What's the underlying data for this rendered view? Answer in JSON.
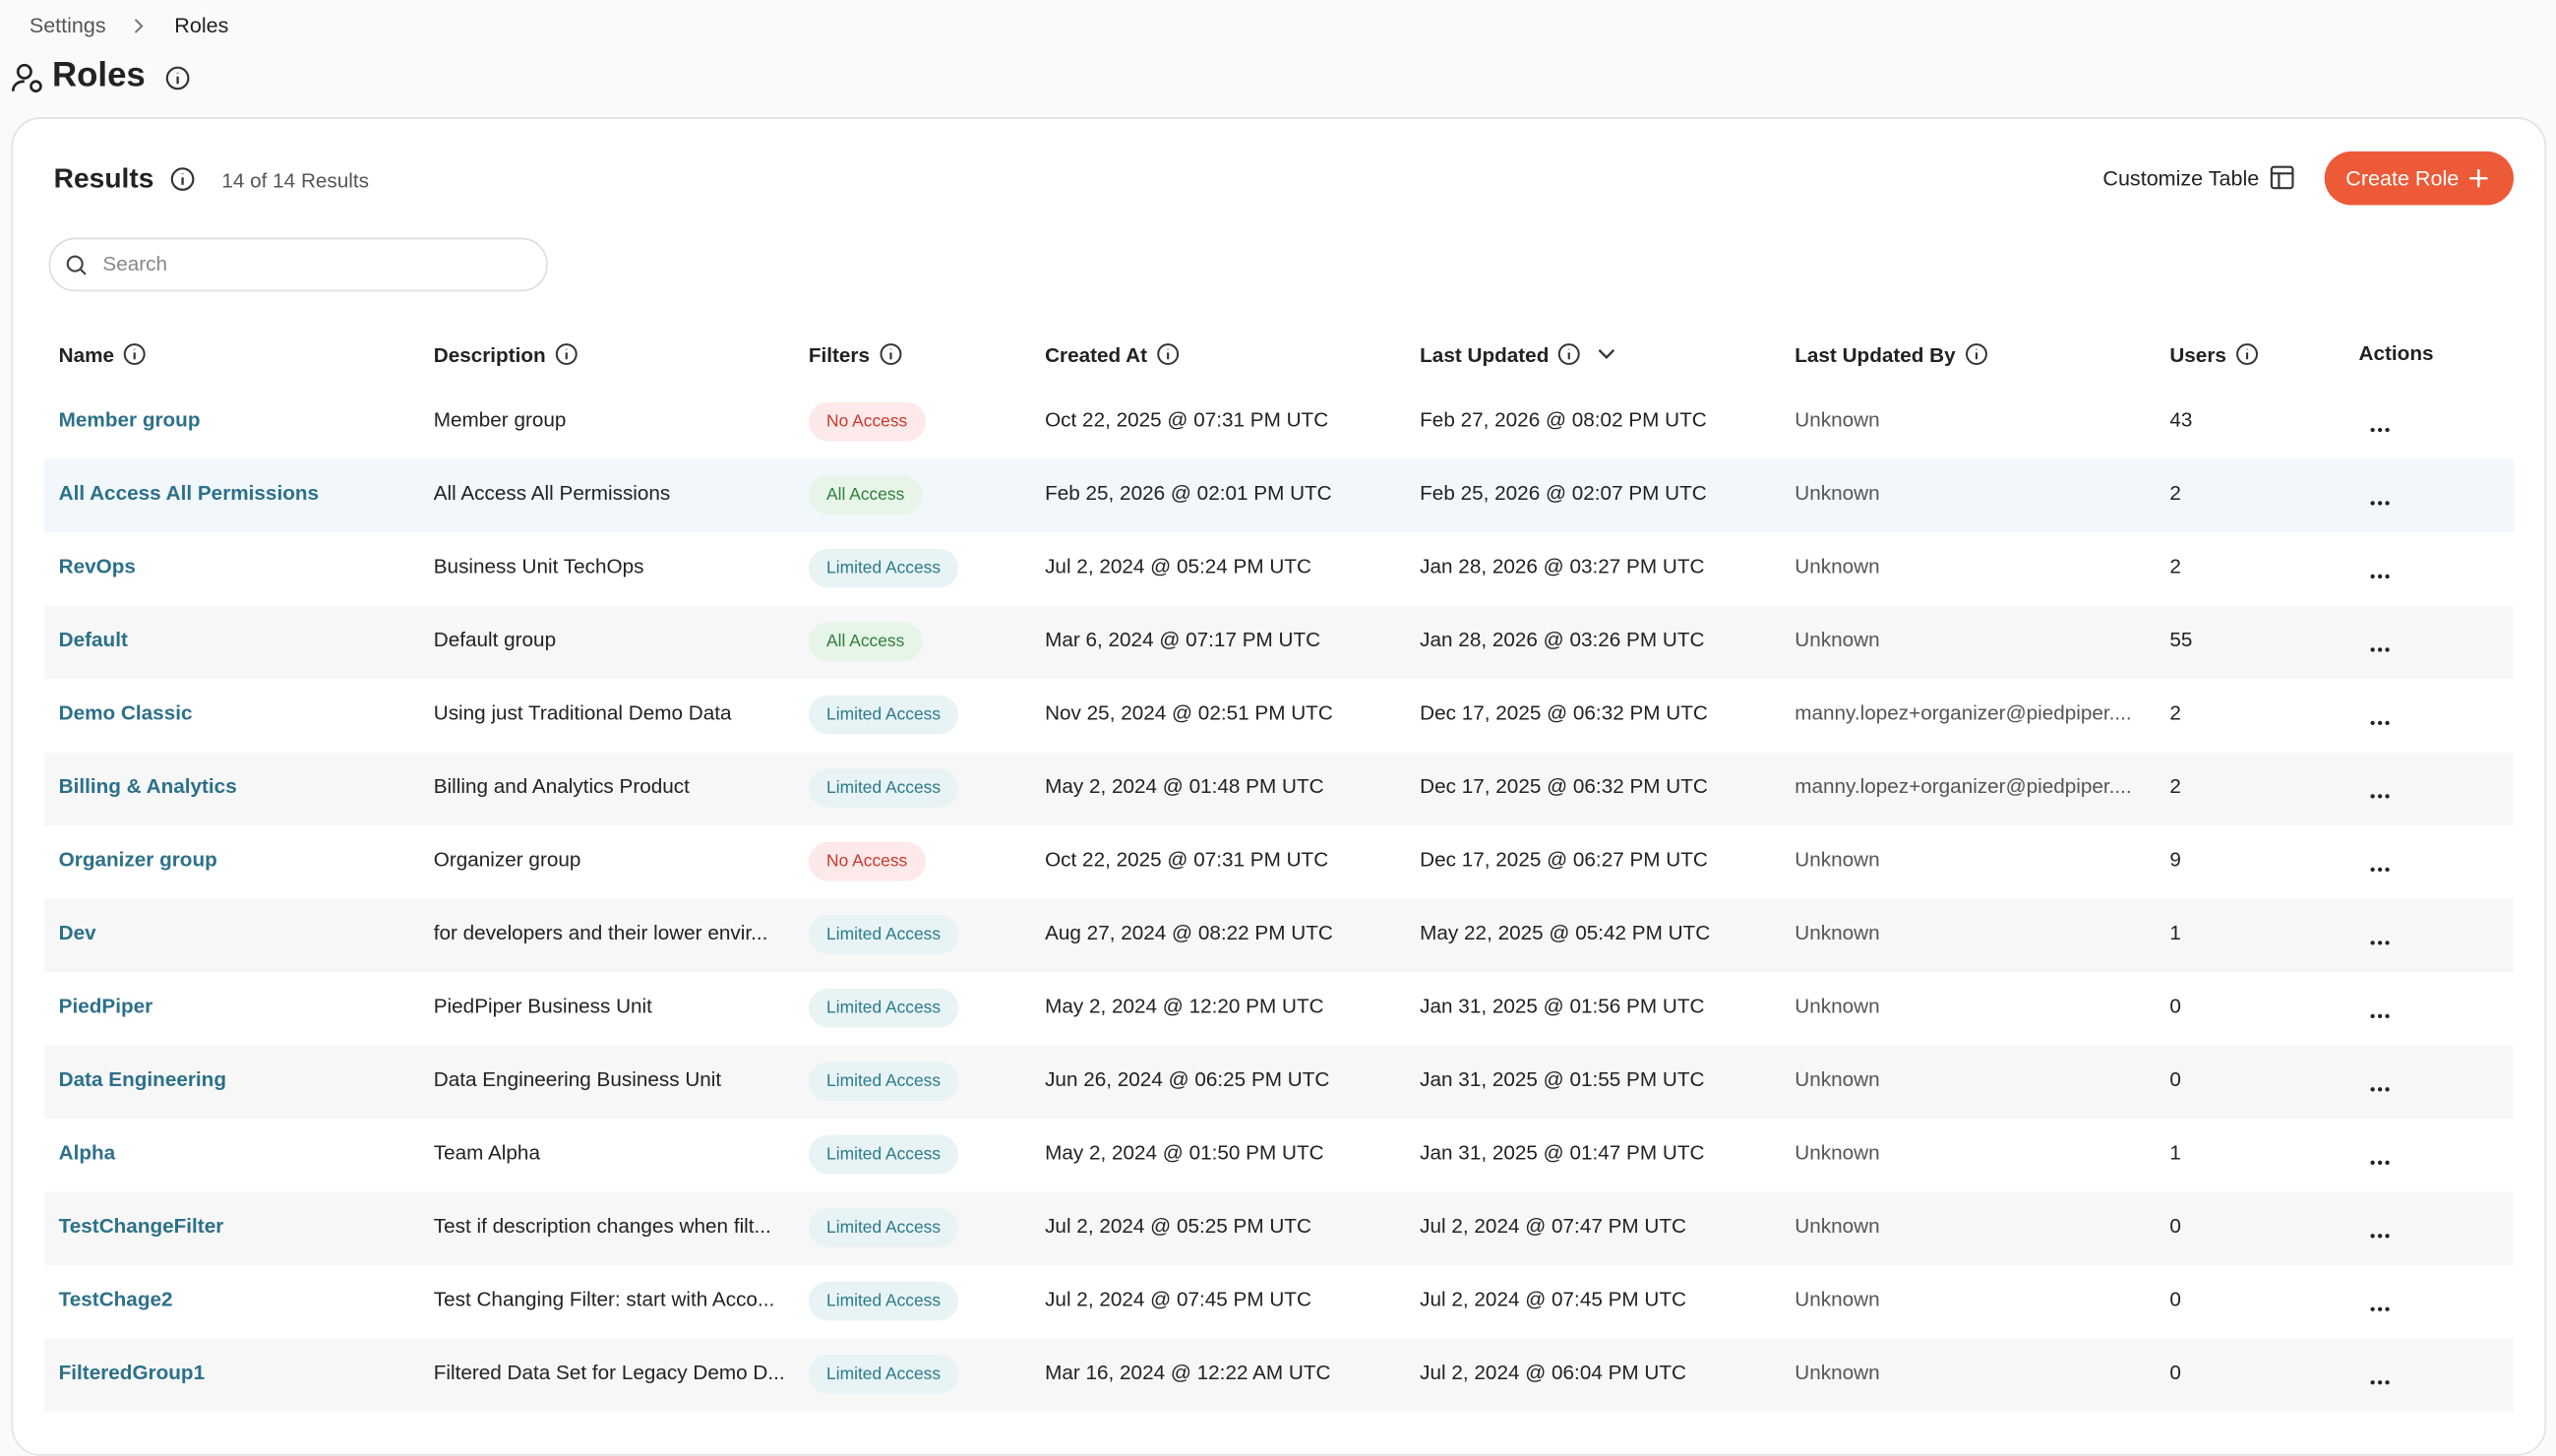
{
  "breadcrumb": [
    "Settings",
    "Roles"
  ],
  "page_title": "Roles",
  "results": {
    "title": "Results",
    "count": "14 of 14 Results",
    "customize": "Customize Table",
    "create": "Create Role",
    "search_placeholder": "Search"
  },
  "table": {
    "columns": [
      {
        "label": "Name",
        "info": true
      },
      {
        "label": "Description",
        "info": true
      },
      {
        "label": "Filters",
        "info": true
      },
      {
        "label": "Created At",
        "info": true
      },
      {
        "label": "Last Updated",
        "info": true,
        "sort": "desc"
      },
      {
        "label": "Last Updated By",
        "info": true
      },
      {
        "label": "Users",
        "info": true
      },
      {
        "label": "Actions",
        "info": false
      }
    ],
    "rows": [
      [
        "Member group",
        "Member group",
        "No Access",
        "Oct 22, 2025 @ 07:31 PM UTC",
        "Feb 27, 2026 @ 08:02 PM UTC",
        "Unknown",
        43
      ],
      [
        "All Access All Permissions",
        "All Access All Permissions",
        "All Access",
        "Feb 25, 2026 @ 02:01 PM UTC",
        "Feb 25, 2026 @ 02:07 PM UTC",
        "Unknown",
        2
      ],
      [
        "RevOps",
        "Business Unit TechOps",
        "Limited Access",
        "Jul 2, 2024 @ 05:24 PM UTC",
        "Jan 28, 2026 @ 03:27 PM UTC",
        "Unknown",
        2
      ],
      [
        "Default",
        "Default group",
        "All Access",
        "Mar 6, 2024 @ 07:17 PM UTC",
        "Jan 28, 2026 @ 03:26 PM UTC",
        "Unknown",
        55
      ],
      [
        "Demo Classic",
        "Using just Traditional Demo Data",
        "Limited Access",
        "Nov 25, 2024 @ 02:51 PM UTC",
        "Dec 17, 2025 @ 06:32 PM UTC",
        "manny.lopez+organizer@piedpiper....",
        2
      ],
      [
        "Billing & Analytics",
        "Billing and Analytics Product",
        "Limited Access",
        "May 2, 2024 @ 01:48 PM UTC",
        "Dec 17, 2025 @ 06:32 PM UTC",
        "manny.lopez+organizer@piedpiper....",
        2
      ],
      [
        "Organizer group",
        "Organizer group",
        "No Access",
        "Oct 22, 2025 @ 07:31 PM UTC",
        "Dec 17, 2025 @ 06:27 PM UTC",
        "Unknown",
        9
      ],
      [
        "Dev",
        "for developers and their lower envir...",
        "Limited Access",
        "Aug 27, 2024 @ 08:22 PM UTC",
        "May 22, 2025 @ 05:42 PM UTC",
        "Unknown",
        1
      ],
      [
        "PiedPiper",
        "PiedPiper Business Unit",
        "Limited Access",
        "May 2, 2024 @ 12:20 PM UTC",
        "Jan 31, 2025 @ 01:56 PM UTC",
        "Unknown",
        0
      ],
      [
        "Data Engineering",
        "Data Engineering Business Unit",
        "Limited Access",
        "Jun 26, 2024 @ 06:25 PM UTC",
        "Jan 31, 2025 @ 01:55 PM UTC",
        "Unknown",
        0
      ],
      [
        "Alpha",
        "Team Alpha",
        "Limited Access",
        "May 2, 2024 @ 01:50 PM UTC",
        "Jan 31, 2025 @ 01:47 PM UTC",
        "Unknown",
        1
      ],
      [
        "TestChangeFilter",
        "Test if description changes when filt...",
        "Limited Access",
        "Jul 2, 2024 @ 05:25 PM UTC",
        "Jul 2, 2024 @ 07:47 PM UTC",
        "Unknown",
        0
      ],
      [
        "TestChage2",
        "Test Changing Filter: start with Acco...",
        "Limited Access",
        "Jul 2, 2024 @ 07:45 PM UTC",
        "Jul 2, 2024 @ 07:45 PM UTC",
        "Unknown",
        0
      ],
      [
        "FilteredGroup1",
        "Filtered Data Set for Legacy Demo D...",
        "Limited Access",
        "Mar 16, 2024 @ 12:22 AM UTC",
        "Jul 2, 2024 @ 06:04 PM UTC",
        "Unknown",
        0
      ]
    ]
  }
}
